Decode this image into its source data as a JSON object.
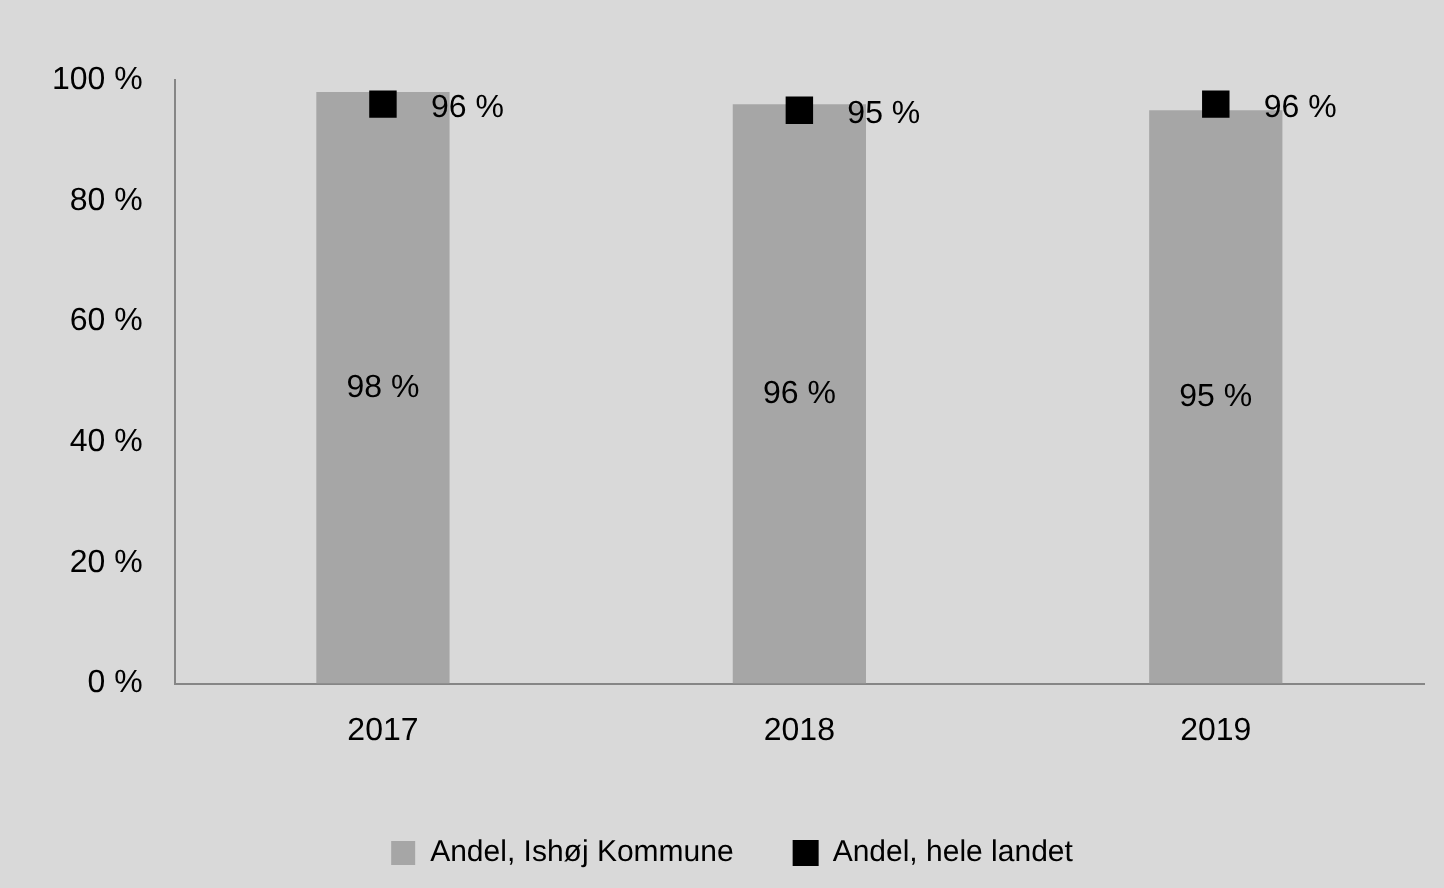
{
  "chart_data": {
    "type": "bar",
    "categories": [
      "2017",
      "2018",
      "2019"
    ],
    "series": [
      {
        "name": "Andel, Ishøj Kommune",
        "color": "#a6a6a6",
        "values": [
          98,
          96,
          95
        ],
        "value_labels": [
          "98 %",
          "96 %",
          "95 %"
        ]
      },
      {
        "name": "Andel, hele landet",
        "type": "scatter",
        "color": "#000000",
        "values": [
          96,
          95,
          96
        ],
        "value_labels": [
          "96 %",
          "95 %",
          "96 %"
        ]
      }
    ],
    "ylim": [
      0,
      100
    ],
    "yticks": [
      {
        "value": 0,
        "label": "0 %"
      },
      {
        "value": 20,
        "label": "20 %"
      },
      {
        "value": 40,
        "label": "40 %"
      },
      {
        "value": 60,
        "label": "60 %"
      },
      {
        "value": 80,
        "label": "80 %"
      },
      {
        "value": 100,
        "label": "100 %"
      }
    ],
    "grid": false,
    "legend": "bottom"
  }
}
